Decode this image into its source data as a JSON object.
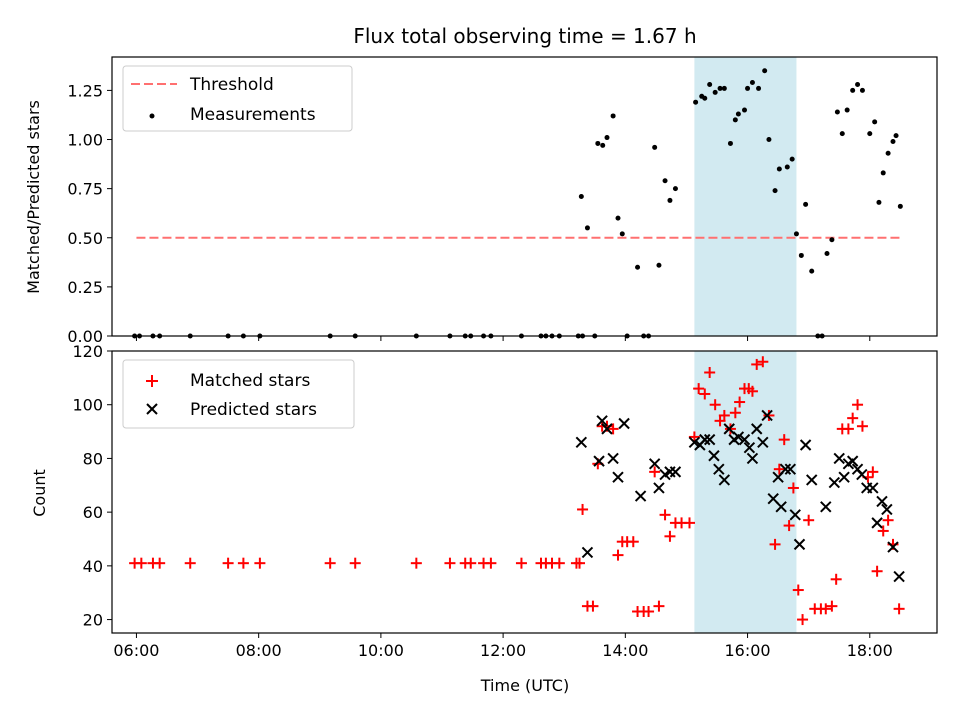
{
  "chart_data": [
    {
      "type": "scatter",
      "title": "Flux total observing time = 1.67 h",
      "ylabel": "Matched/Predicted stars",
      "xlabel": "",
      "x_unit": "hours (UTC)",
      "ylim": [
        0,
        1.42
      ],
      "yticks": [
        0.0,
        0.25,
        0.5,
        0.75,
        1.0,
        1.25
      ],
      "ytick_labels": [
        "0.00",
        "0.25",
        "0.50",
        "0.75",
        "1.00",
        "1.25"
      ],
      "legend": {
        "placement": "upper-left",
        "entries": [
          {
            "label": "Threshold",
            "kind": "dashed-line",
            "color": "#ff7070"
          },
          {
            "label": "Measurements",
            "kind": "dot",
            "color": "#000000"
          }
        ]
      },
      "threshold": {
        "name": "Threshold",
        "value": 0.5,
        "x_range": [
          6.0,
          18.5
        ],
        "color": "#ff7070"
      },
      "shaded_span": {
        "x_range": [
          15.13,
          16.8
        ],
        "color": "#add8e6"
      },
      "series": [
        {
          "name": "Measurements",
          "color": "#000000",
          "points": [
            [
              5.97,
              0
            ],
            [
              6.05,
              0
            ],
            [
              6.27,
              0
            ],
            [
              6.38,
              0
            ],
            [
              6.88,
              0
            ],
            [
              7.5,
              0
            ],
            [
              7.75,
              0
            ],
            [
              8.02,
              0
            ],
            [
              9.17,
              0
            ],
            [
              9.58,
              0
            ],
            [
              10.58,
              0
            ],
            [
              11.13,
              0
            ],
            [
              11.38,
              0
            ],
            [
              11.47,
              0
            ],
            [
              11.68,
              0
            ],
            [
              11.8,
              0
            ],
            [
              12.3,
              0
            ],
            [
              12.62,
              0
            ],
            [
              12.7,
              0
            ],
            [
              12.8,
              0
            ],
            [
              12.92,
              0
            ],
            [
              13.23,
              0
            ],
            [
              13.3,
              0
            ],
            [
              13.5,
              0
            ],
            [
              13.28,
              0.71
            ],
            [
              13.38,
              0.55
            ],
            [
              13.55,
              0.98
            ],
            [
              13.63,
              0.97
            ],
            [
              13.7,
              1.01
            ],
            [
              13.8,
              1.12
            ],
            [
              13.88,
              0.6
            ],
            [
              13.95,
              0.52
            ],
            [
              14.03,
              0
            ],
            [
              14.2,
              0.35
            ],
            [
              14.3,
              0
            ],
            [
              14.38,
              0
            ],
            [
              14.48,
              0.96
            ],
            [
              14.55,
              0.36
            ],
            [
              14.65,
              0.79
            ],
            [
              14.73,
              0.69
            ],
            [
              14.82,
              0.75
            ],
            [
              15.15,
              1.19
            ],
            [
              15.25,
              1.22
            ],
            [
              15.3,
              1.21
            ],
            [
              15.38,
              1.28
            ],
            [
              15.47,
              1.24
            ],
            [
              15.55,
              1.26
            ],
            [
              15.62,
              1.26
            ],
            [
              15.72,
              0.98
            ],
            [
              15.8,
              1.1
            ],
            [
              15.85,
              1.13
            ],
            [
              15.95,
              1.15
            ],
            [
              16.0,
              1.26
            ],
            [
              16.08,
              1.29
            ],
            [
              16.18,
              1.26
            ],
            [
              16.28,
              1.35
            ],
            [
              16.35,
              1.0
            ],
            [
              16.45,
              0.74
            ],
            [
              16.52,
              0.85
            ],
            [
              16.65,
              0.86
            ],
            [
              16.73,
              0.9
            ],
            [
              16.8,
              0.52
            ],
            [
              16.88,
              0.41
            ],
            [
              16.95,
              0.67
            ],
            [
              17.05,
              0.33
            ],
            [
              17.15,
              0
            ],
            [
              17.22,
              0
            ],
            [
              17.3,
              0.42
            ],
            [
              17.38,
              0.49
            ],
            [
              17.47,
              1.14
            ],
            [
              17.55,
              1.03
            ],
            [
              17.63,
              1.15
            ],
            [
              17.72,
              1.25
            ],
            [
              17.8,
              1.28
            ],
            [
              17.88,
              1.25
            ],
            [
              18.0,
              1.03
            ],
            [
              18.08,
              1.09
            ],
            [
              18.15,
              0.68
            ],
            [
              18.22,
              0.83
            ],
            [
              18.3,
              0.93
            ],
            [
              18.38,
              0.99
            ],
            [
              18.43,
              1.02
            ],
            [
              18.5,
              0.66
            ]
          ]
        }
      ]
    },
    {
      "type": "scatter",
      "title": "",
      "ylabel": "Count",
      "xlabel": "Time (UTC)",
      "x_unit": "hours (UTC)",
      "xlim": [
        5.6,
        19.1
      ],
      "xticks": [
        6,
        8,
        10,
        12,
        14,
        16,
        18
      ],
      "xtick_labels": [
        "06:00",
        "08:00",
        "10:00",
        "12:00",
        "14:00",
        "16:00",
        "18:00"
      ],
      "ylim": [
        15,
        120
      ],
      "yticks": [
        20,
        40,
        60,
        80,
        100,
        120
      ],
      "ytick_labels": [
        "20",
        "40",
        "60",
        "80",
        "100",
        "120"
      ],
      "legend": {
        "placement": "upper-left",
        "entries": [
          {
            "label": "Matched stars",
            "kind": "plus",
            "color": "#ff0000"
          },
          {
            "label": "Predicted stars",
            "kind": "x",
            "color": "#000000"
          }
        ]
      },
      "shaded_span": {
        "x_range": [
          15.13,
          16.8
        ],
        "color": "#add8e6"
      },
      "series": [
        {
          "name": "Matched stars",
          "color": "#ff0000",
          "points": [
            [
              5.97,
              41
            ],
            [
              6.08,
              41
            ],
            [
              6.27,
              41
            ],
            [
              6.38,
              41
            ],
            [
              6.88,
              41
            ],
            [
              7.5,
              41
            ],
            [
              7.75,
              41
            ],
            [
              8.02,
              41
            ],
            [
              9.17,
              41
            ],
            [
              9.58,
              41
            ],
            [
              10.58,
              41
            ],
            [
              11.13,
              41
            ],
            [
              11.38,
              41
            ],
            [
              11.47,
              41
            ],
            [
              11.68,
              41
            ],
            [
              11.8,
              41
            ],
            [
              12.3,
              41
            ],
            [
              12.62,
              41
            ],
            [
              12.7,
              41
            ],
            [
              12.8,
              41
            ],
            [
              12.92,
              41
            ],
            [
              13.2,
              41
            ],
            [
              13.25,
              41
            ],
            [
              13.3,
              61
            ],
            [
              13.38,
              25
            ],
            [
              13.47,
              25
            ],
            [
              13.55,
              78
            ],
            [
              13.62,
              92
            ],
            [
              13.7,
              92
            ],
            [
              13.8,
              91
            ],
            [
              13.88,
              44
            ],
            [
              13.95,
              49
            ],
            [
              14.03,
              49
            ],
            [
              14.13,
              49
            ],
            [
              14.2,
              23
            ],
            [
              14.3,
              23
            ],
            [
              14.38,
              23
            ],
            [
              14.48,
              75
            ],
            [
              14.55,
              25
            ],
            [
              14.65,
              59
            ],
            [
              14.73,
              51
            ],
            [
              14.82,
              56
            ],
            [
              14.92,
              56
            ],
            [
              15.05,
              56
            ],
            [
              15.13,
              88
            ],
            [
              15.2,
              106
            ],
            [
              15.3,
              104
            ],
            [
              15.38,
              112
            ],
            [
              15.47,
              100
            ],
            [
              15.55,
              94
            ],
            [
              15.62,
              96
            ],
            [
              15.72,
              91
            ],
            [
              15.8,
              97
            ],
            [
              15.87,
              101
            ],
            [
              15.95,
              106
            ],
            [
              16.02,
              106
            ],
            [
              16.08,
              105
            ],
            [
              16.15,
              115
            ],
            [
              16.25,
              116
            ],
            [
              16.35,
              96
            ],
            [
              16.45,
              48
            ],
            [
              16.52,
              76
            ],
            [
              16.6,
              87
            ],
            [
              16.68,
              55
            ],
            [
              16.75,
              69
            ],
            [
              16.83,
              31
            ],
            [
              16.9,
              20
            ],
            [
              17.0,
              57
            ],
            [
              17.1,
              24
            ],
            [
              17.2,
              24
            ],
            [
              17.28,
              24
            ],
            [
              17.38,
              25
            ],
            [
              17.45,
              35
            ],
            [
              17.55,
              91
            ],
            [
              17.65,
              91
            ],
            [
              17.72,
              95
            ],
            [
              17.8,
              100
            ],
            [
              17.88,
              92
            ],
            [
              17.97,
              73
            ],
            [
              18.05,
              75
            ],
            [
              18.12,
              38
            ],
            [
              18.22,
              53
            ],
            [
              18.3,
              57
            ],
            [
              18.38,
              48
            ],
            [
              18.48,
              24
            ]
          ]
        },
        {
          "name": "Predicted stars",
          "color": "#000000",
          "points": [
            [
              13.28,
              86
            ],
            [
              13.38,
              45
            ],
            [
              13.57,
              79
            ],
            [
              13.62,
              94
            ],
            [
              13.7,
              91
            ],
            [
              13.8,
              80
            ],
            [
              13.88,
              73
            ],
            [
              13.98,
              93
            ],
            [
              14.25,
              66
            ],
            [
              14.48,
              78
            ],
            [
              14.55,
              69
            ],
            [
              14.65,
              74
            ],
            [
              14.73,
              75
            ],
            [
              14.82,
              75
            ],
            [
              15.13,
              86
            ],
            [
              15.22,
              85
            ],
            [
              15.3,
              87
            ],
            [
              15.38,
              87
            ],
            [
              15.45,
              81
            ],
            [
              15.53,
              76
            ],
            [
              15.62,
              72
            ],
            [
              15.7,
              91
            ],
            [
              15.78,
              87
            ],
            [
              15.85,
              88
            ],
            [
              15.95,
              87
            ],
            [
              16.03,
              84
            ],
            [
              16.08,
              80
            ],
            [
              16.15,
              91
            ],
            [
              16.25,
              86
            ],
            [
              16.32,
              96
            ],
            [
              16.42,
              65
            ],
            [
              16.5,
              73
            ],
            [
              16.55,
              62
            ],
            [
              16.62,
              76
            ],
            [
              16.7,
              76
            ],
            [
              16.78,
              59
            ],
            [
              16.85,
              48
            ],
            [
              16.95,
              85
            ],
            [
              17.05,
              72
            ],
            [
              17.28,
              62
            ],
            [
              17.42,
              71
            ],
            [
              17.5,
              80
            ],
            [
              17.58,
              73
            ],
            [
              17.65,
              78
            ],
            [
              17.72,
              79
            ],
            [
              17.8,
              76
            ],
            [
              17.87,
              74
            ],
            [
              17.95,
              69
            ],
            [
              18.05,
              69
            ],
            [
              18.12,
              56
            ],
            [
              18.2,
              64
            ],
            [
              18.28,
              61
            ],
            [
              18.38,
              47
            ],
            [
              18.48,
              36
            ]
          ]
        }
      ]
    }
  ]
}
